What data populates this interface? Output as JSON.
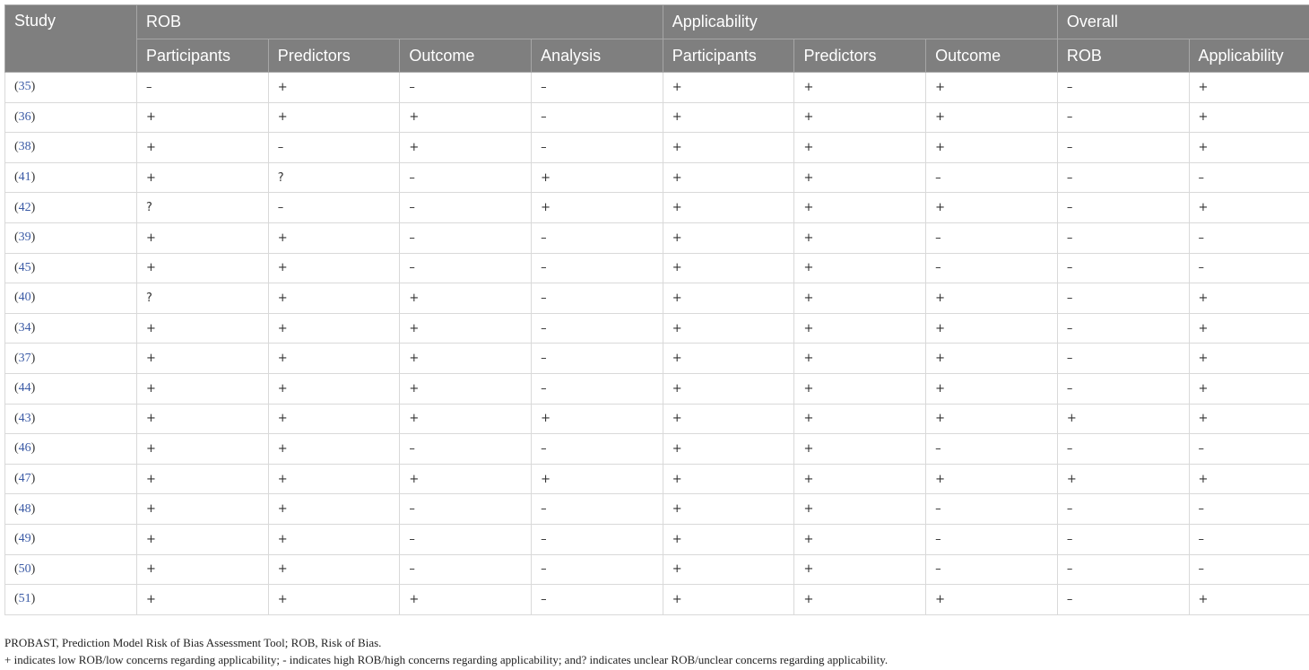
{
  "headers": {
    "study": "Study",
    "groups": [
      "ROB",
      "Applicability",
      "Overall"
    ],
    "subcolumns": [
      "Participants",
      "Predictors",
      "Outcome",
      "Analysis",
      "Participants",
      "Predictors",
      "Outcome",
      "ROB",
      "Applicability"
    ]
  },
  "rows": [
    {
      "ref": "35",
      "values": [
        "–",
        "+",
        "–",
        "–",
        "+",
        "+",
        "+",
        "–",
        "+"
      ]
    },
    {
      "ref": "36",
      "values": [
        "+",
        "+",
        "+",
        "–",
        "+",
        "+",
        "+",
        "–",
        "+"
      ]
    },
    {
      "ref": "38",
      "values": [
        "+",
        "–",
        "+",
        "–",
        "+",
        "+",
        "+",
        "–",
        "+"
      ]
    },
    {
      "ref": "41",
      "values": [
        "+",
        "?",
        "–",
        "+",
        "+",
        "+",
        "–",
        "–",
        "–"
      ]
    },
    {
      "ref": "42",
      "values": [
        "?",
        "–",
        "–",
        "+",
        "+",
        "+",
        "+",
        "–",
        "+"
      ]
    },
    {
      "ref": "39",
      "values": [
        "+",
        "+",
        "–",
        "–",
        "+",
        "+",
        "–",
        "–",
        "–"
      ]
    },
    {
      "ref": "45",
      "values": [
        "+",
        "+",
        "–",
        "–",
        "+",
        "+",
        "–",
        "–",
        "–"
      ]
    },
    {
      "ref": "40",
      "values": [
        "?",
        "+",
        "+",
        "–",
        "+",
        "+",
        "+",
        "–",
        "+"
      ]
    },
    {
      "ref": "34",
      "values": [
        "+",
        "+",
        "+",
        "–",
        "+",
        "+",
        "+",
        "–",
        "+"
      ]
    },
    {
      "ref": "37",
      "values": [
        "+",
        "+",
        "+",
        "–",
        "+",
        "+",
        "+",
        "–",
        "+"
      ]
    },
    {
      "ref": "44",
      "values": [
        "+",
        "+",
        "+",
        "–",
        "+",
        "+",
        "+",
        "–",
        "+"
      ]
    },
    {
      "ref": "43",
      "values": [
        "+",
        "+",
        "+",
        "+",
        "+",
        "+",
        "+",
        "+",
        "+"
      ]
    },
    {
      "ref": "46",
      "values": [
        "+",
        "+",
        "–",
        "–",
        "+",
        "+",
        "–",
        "–",
        "–"
      ]
    },
    {
      "ref": "47",
      "values": [
        "+",
        "+",
        "+",
        "+",
        "+",
        "+",
        "+",
        "+",
        "+"
      ]
    },
    {
      "ref": "48",
      "values": [
        "+",
        "+",
        "–",
        "–",
        "+",
        "+",
        "–",
        "–",
        "–"
      ]
    },
    {
      "ref": "49",
      "values": [
        "+",
        "+",
        "–",
        "–",
        "+",
        "+",
        "–",
        "–",
        "–"
      ]
    },
    {
      "ref": "50",
      "values": [
        "+",
        "+",
        "–",
        "–",
        "+",
        "+",
        "–",
        "–",
        "–"
      ]
    },
    {
      "ref": "51",
      "values": [
        "+",
        "+",
        "+",
        "–",
        "+",
        "+",
        "+",
        "–",
        "+"
      ]
    }
  ],
  "footnotes": [
    "PROBAST, Prediction Model Risk of Bias Assessment Tool; ROB, Risk of Bias.",
    "+ indicates low ROB/low concerns regarding applicability; - indicates high ROB/high concerns regarding applicability; and? indicates unclear ROB/unclear concerns regarding applicability."
  ],
  "colors": {
    "header_bg": "#7f7f7f",
    "header_text": "#ffffff",
    "reference_link": "#3b5ba6",
    "grid_line": "#d9d9d9"
  }
}
